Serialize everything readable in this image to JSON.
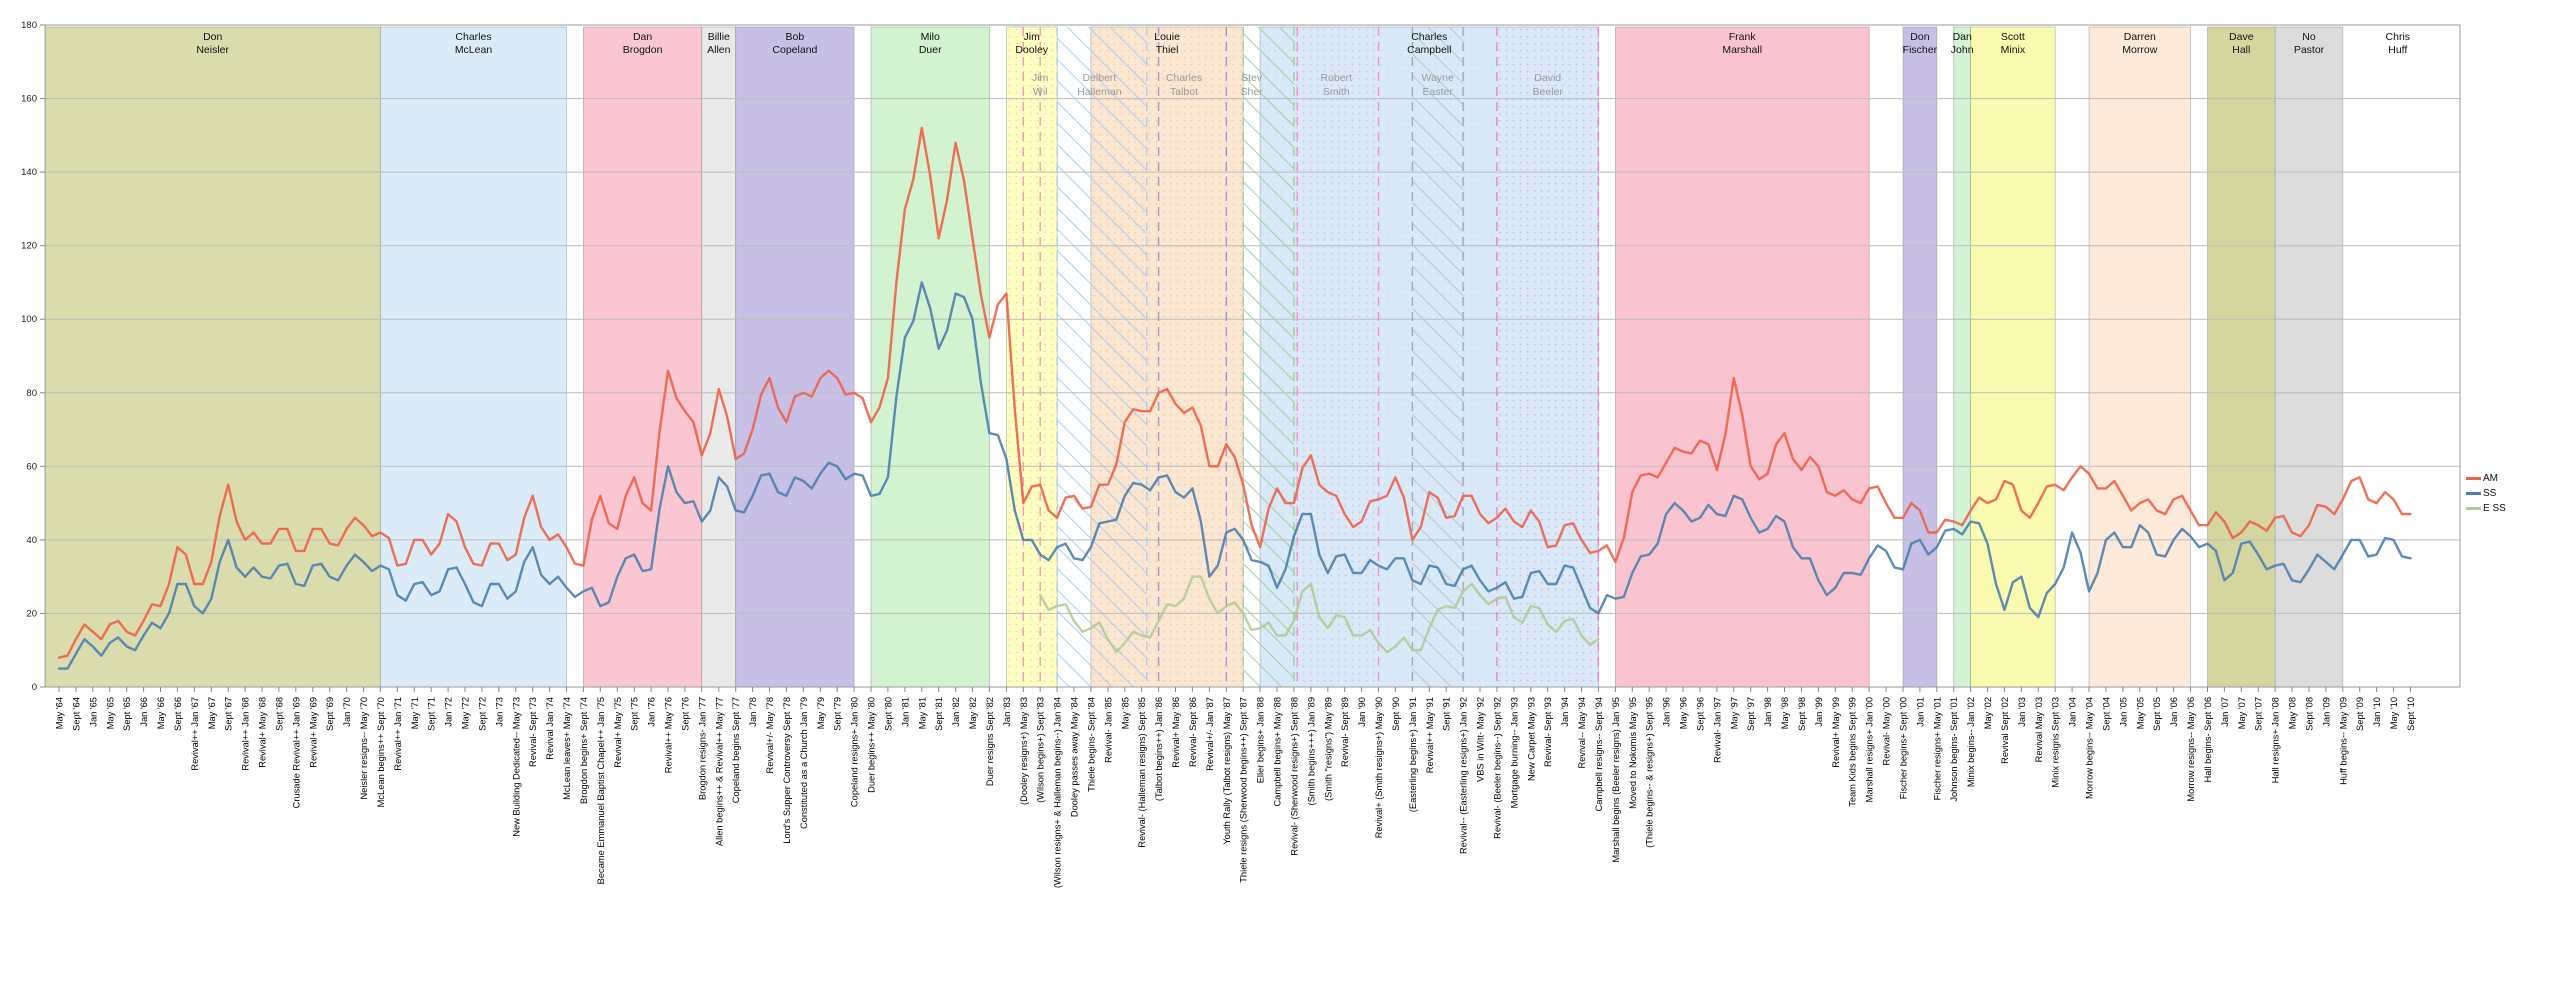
{
  "legend": {
    "items": [
      {
        "label": "AM",
        "color": "#ec6248"
      },
      {
        "label": "SS",
        "color": "#4b7fae"
      },
      {
        "label": "E SS",
        "color": "#b2cc96"
      }
    ]
  },
  "chart_data": {
    "type": "line",
    "title": "",
    "xlabel": "",
    "ylabel": "",
    "ylim": [
      0,
      180
    ],
    "y_ticks": [
      0,
      20,
      40,
      60,
      80,
      100,
      120,
      140,
      160,
      180
    ],
    "grid": true,
    "legend_position": "right",
    "x_tick_labels": [
      "May '64",
      "Sept '64",
      "Jan '65",
      "May '65",
      "Sept '65",
      "Jan '66",
      "May '66",
      "Sept '66",
      "Revival++ Jan '67",
      "May '67",
      "Sept '67",
      "Revival++ Jan '68",
      "Revival+ May '68",
      "Sept '68",
      "Crusade Revival++ Jan '69",
      "Revival+ May '69",
      "Sept '69",
      "Jan '70",
      "Neisler resigns-- May '70",
      "McLean begins++ Sept '70",
      "Revival++ Jan '71",
      "May '71",
      "Sept '71",
      "Jan '72",
      "May '72",
      "Sept '72",
      "Jan '73",
      "New Building Dedicated-- May '73",
      "Revival- Sept '73",
      "Revival Jan '74",
      "McLean leaves+ May '74",
      "Brogdon begins+ Sept '74",
      "Became Emmanuel Baptist Chapel++ Jan '75",
      "Revival+ May '75",
      "Sept '75",
      "Jan '76",
      "Revival++ May '76",
      "Sept '76",
      "Brogdon resigns- Jan '77",
      "Allen begins++ & Revival++ May '77",
      "Copeland begins Sept '77",
      "Jan '78",
      "Revival+/- May '78",
      "Lord's Supper Controversy Sept '78",
      "Constituted as a Church Jan '79",
      "May '79",
      "Sept '79",
      "Copeland resigns+ Jan '80",
      "Duer begins++ May '80",
      "Sept '80",
      "Jan '81",
      "May '81",
      "Sept '81",
      "Jan '82",
      "May '82",
      "Duer resigns Sept '82",
      "Jan '83",
      "(Dooley resigns+) May '83",
      "(Wilson begins+) Sept '83",
      "(Wilson resigns+ & Halleman begins--) Jan '84",
      "Dooley passes away May '84",
      "Thiele begins- Sept '84",
      "Revival- Jan '85",
      "May '85",
      "Revival- (Halleman resigns) Sept '85",
      "(Talbot begins++) Jan '86",
      "Revival+ May '86",
      "Revival- Sept '86",
      "Revival+/- Jan '87",
      "Youth Rally (Talbot resigns) May '87",
      "Thiele resigns (Sherwood begins++) Sept '87",
      "Eller begins+ Jan '88",
      "Campbell begins+ May '88",
      "Revival- (Sherwood resigns+) Sept '88",
      "(Smith begins+++) Jan '89",
      "(Smith \"resigns\") May '89",
      "Revival- Sept '89",
      "Jan '90",
      "Revival+ (Smith resigns+) May '90",
      "Sept '90",
      "(Easterling begins+) Jan '91",
      "Revival++ May '91",
      "Sept '91",
      "Revival-- (Easterling resigns+) Jan '92",
      "VBS in Witt- May '92",
      "Revival- (Beeler begins--) Sept '92",
      "Mortgage burning-- Jan '93",
      "New Carpet May '93",
      "Revival- Sept '93",
      "Jan '94",
      "Revival-- May '94",
      "Campbell resigns-- Sept '94",
      "Marshall begins (Beeler resigns) Jan '95",
      "Moved to Nokomis May '95",
      "(Thiele begins-- & resigns+) Sept '95",
      "Jan '96",
      "May '96",
      "Sept '96",
      "Revival- Jan '97",
      "May '97",
      "Sept '97",
      "Jan '98",
      "May '98",
      "Sept '98",
      "Jan '99",
      "Revival+ May '99",
      "Team Kids begins Sept '99",
      "Marshall resigns+ Jan '00",
      "Revival- May '00",
      "Fischer begins+ Sept '00",
      "Jan '01",
      "Fischer resigns+ May '01",
      "Johnson begins- Sept '01",
      "Minix begins-- Jan '02",
      "May '02",
      "Revival Sept '02",
      "Jan '03",
      "Revival May '03",
      "Minix resigns Sept '03",
      "Jan '04",
      "Morrow begins-- May '04",
      "Sept '04",
      "Jan '05",
      "May '05",
      "Sept '05",
      "Jan '06",
      "Morrow resigns-- May '06",
      "Hall begins- Sept '06",
      "Jan '07",
      "May '07",
      "Sept '07",
      "Hall resigns+ Jan '08",
      "May '08",
      "Sept '08",
      "Jan '09",
      "Huff begins-- May '09",
      "Sept '09",
      "Jan '10",
      "May '10",
      "Sept '10"
    ],
    "series": [
      {
        "name": "AM",
        "color": "#ec6248",
        "values": [
          8,
          13,
          15,
          17,
          15,
          18,
          22,
          38,
          28,
          34,
          55,
          40,
          39,
          43,
          37,
          43,
          39,
          43,
          44,
          42,
          33,
          40,
          36,
          47,
          38,
          33,
          39,
          36,
          52,
          40,
          38,
          33,
          52,
          43,
          57,
          48,
          86,
          75,
          63,
          81,
          62,
          70,
          84,
          72,
          80,
          84,
          84,
          80,
          72,
          84,
          130,
          152,
          122,
          148,
          122,
          95,
          107,
          50,
          55,
          46,
          52,
          49,
          55,
          72,
          75,
          80,
          77,
          76,
          60,
          66,
          55,
          38,
          54,
          50,
          63,
          53,
          47,
          45,
          51,
          57,
          40,
          53,
          46,
          52,
          47,
          46,
          45,
          48,
          38,
          44,
          40,
          37,
          34,
          53,
          58,
          61,
          64,
          67,
          59,
          84,
          60,
          58,
          69,
          59,
          60,
          52,
          51,
          54,
          50,
          46,
          48,
          42,
          45,
          48,
          50,
          56,
          48,
          50,
          55,
          57,
          58,
          54,
          52,
          50,
          48,
          51,
          48,
          44,
          45,
          42,
          44,
          46,
          42,
          44,
          49,
          51,
          57,
          50,
          51,
          47
        ]
      },
      {
        "name": "SS",
        "color": "#4b7fae",
        "values": [
          5,
          9,
          11,
          12,
          11,
          14,
          16,
          28,
          22,
          24,
          40,
          30,
          30,
          33,
          28,
          33,
          30,
          33,
          34,
          33,
          25,
          28,
          25,
          32,
          28,
          22,
          28,
          26,
          38,
          28,
          27,
          26,
          22,
          30,
          36,
          32,
          60,
          50,
          45,
          57,
          48,
          52,
          58,
          52,
          56,
          58,
          60,
          58,
          52,
          57,
          95,
          110,
          92,
          107,
          100,
          69,
          62,
          40,
          36,
          38,
          35,
          38,
          45,
          52,
          55,
          57,
          53,
          54,
          30,
          42,
          40,
          34,
          27,
          41,
          47,
          31,
          36,
          31,
          33,
          35,
          29,
          33,
          28,
          32,
          29,
          27,
          24,
          31,
          28,
          33,
          27,
          20,
          24,
          31,
          36,
          47,
          48,
          46,
          47,
          52,
          46,
          43,
          45,
          35,
          29,
          27,
          31,
          35,
          37,
          32,
          40,
          38,
          43,
          45,
          39,
          21,
          30,
          19,
          28,
          42,
          26,
          40,
          38,
          44,
          36,
          40,
          41,
          39,
          29,
          39,
          36,
          33,
          29,
          32,
          34,
          36,
          40,
          36,
          40,
          35
        ]
      },
      {
        "name": "E SS",
        "color": "#b2cc96",
        "values": [
          null,
          null,
          null,
          null,
          null,
          null,
          null,
          null,
          null,
          null,
          null,
          null,
          null,
          null,
          null,
          null,
          null,
          null,
          null,
          null,
          null,
          null,
          null,
          null,
          null,
          null,
          null,
          null,
          null,
          null,
          null,
          null,
          null,
          null,
          null,
          null,
          null,
          null,
          null,
          null,
          null,
          null,
          null,
          null,
          null,
          null,
          null,
          null,
          null,
          null,
          null,
          null,
          null,
          null,
          null,
          null,
          null,
          null,
          25,
          22,
          18,
          16,
          13,
          12,
          14,
          18,
          22,
          30,
          24,
          22,
          20,
          16,
          14,
          18,
          28,
          16,
          19,
          14,
          12,
          11,
          10,
          16,
          22,
          26,
          25,
          24,
          19,
          22,
          17,
          18,
          14,
          13,
          null,
          null,
          null,
          null,
          null,
          null,
          null,
          null,
          null,
          null,
          null,
          null,
          null,
          null,
          null,
          null,
          null,
          null,
          null,
          null,
          null,
          null,
          null,
          null,
          null,
          null,
          null,
          null,
          null,
          null,
          null,
          null,
          null,
          null,
          null,
          null,
          null,
          null,
          null,
          null,
          null,
          null,
          null,
          null,
          null,
          null,
          null,
          null
        ]
      }
    ],
    "pastor_bands": [
      {
        "name": "Don Neisler",
        "lines": [
          "Don",
          "Neisler"
        ],
        "color": "#dadcae",
        "start": -0.83,
        "end": 19
      },
      {
        "name": "Charles McLean",
        "lines": [
          "Charles",
          "McLean"
        ],
        "color": "#dcebf8",
        "start": 19,
        "end": 30
      },
      {
        "name": "Dan Brogdon",
        "lines": [
          "Dan",
          "Brogdon"
        ],
        "color": "#f9c6d2",
        "start": 31,
        "end": 38
      },
      {
        "name": "Billie Allen",
        "lines": [
          "Billie",
          "Allen"
        ],
        "color": "#e9e9e9",
        "start": 38,
        "end": 40
      },
      {
        "name": "Bob Copeland",
        "lines": [
          "Bob",
          "Copeland"
        ],
        "color": "#c7bfe5",
        "start": 40,
        "end": 47
      },
      {
        "name": "Milo Duer",
        "lines": [
          "Milo",
          "Duer"
        ],
        "color": "#d2f2d0",
        "start": 48,
        "end": 55
      },
      {
        "name": "Jim Dooley",
        "lines": [
          "Jim",
          "Dooley"
        ],
        "color": "#ffffc2",
        "start": 56,
        "end": 59
      },
      {
        "name": "Louie Thiel",
        "lines": [
          "Louie",
          "Thiel"
        ],
        "color": "#fbe6d0",
        "start": 61,
        "end": 70
      },
      {
        "name": "Charles Campbell",
        "lines": [
          "Charles",
          "Campbell"
        ],
        "color": "#d9e9f8",
        "start": 71,
        "end": 91
      },
      {
        "name": "Frank Marshall",
        "lines": [
          "Frank",
          "Marshall"
        ],
        "color": "#f9c3cf",
        "start": 92,
        "end": 107
      },
      {
        "name": "Don Fischer",
        "lines": [
          "Don",
          "Fischer"
        ],
        "color": "#c8bfe6",
        "start": 109,
        "end": 111
      },
      {
        "name": "Dan John",
        "lines": [
          "Dan",
          "John"
        ],
        "color": "#d4f2d4",
        "start": 112,
        "end": 113
      },
      {
        "name": "Scott Minix",
        "lines": [
          "Scott",
          "Minix"
        ],
        "color": "#fafab0",
        "start": 113,
        "end": 118
      },
      {
        "name": "Darren Morrow",
        "lines": [
          "Darren",
          "Morrow"
        ],
        "color": "#fce9d9",
        "start": 120,
        "end": 126
      },
      {
        "name": "Dave Hall",
        "lines": [
          "Dave",
          "Hall"
        ],
        "color": "#d5d5a0",
        "start": 127,
        "end": 131
      },
      {
        "name": "No Pastor",
        "lines": [
          "No",
          "Pastor"
        ],
        "color": "#dcdcdc",
        "start": 131,
        "end": 135
      },
      {
        "name": "Chris Huff",
        "lines": [
          "Chris",
          "Huff"
        ],
        "color": "none",
        "start": 135,
        "end": 141.5
      }
    ],
    "assistant_labels": [
      {
        "name": "Jim Wil",
        "lines": [
          "Jim",
          "Wil"
        ],
        "idx": 58
      },
      {
        "name": "Delbert Halleman",
        "lines": [
          "Delbert",
          "Halleman"
        ],
        "idx": 61.5
      },
      {
        "name": "Charles Talbot",
        "lines": [
          "Charles",
          "Talbot"
        ],
        "idx": 66.5
      },
      {
        "name": "Stev Sher",
        "lines": [
          "Stev",
          "Sher"
        ],
        "idx": 70.5
      },
      {
        "name": "Robert Smith",
        "lines": [
          "Robert",
          "Smith"
        ],
        "idx": 75.5
      },
      {
        "name": "Wayne Easter",
        "lines": [
          "Wayne",
          "Easter"
        ],
        "idx": 81.5
      },
      {
        "name": "David Beeler",
        "lines": [
          "David",
          "Beeler"
        ],
        "idx": 88
      }
    ],
    "texture_overlays": [
      {
        "type": "dots",
        "color": "#f0a0c8",
        "start": 56,
        "end": 59,
        "opacity": 0.5
      },
      {
        "type": "hatch",
        "color": "#a9cdec",
        "start": 59,
        "end": 64.3,
        "opacity": 0.9
      },
      {
        "type": "dots",
        "color": "#c9a8e0",
        "start": 61,
        "end": 70,
        "opacity": 0.45
      },
      {
        "type": "hatch",
        "color": "#96cf96",
        "start": 70,
        "end": 73,
        "opacity": 0.85
      },
      {
        "type": "dots",
        "color": "#b8d4ee",
        "start": 71,
        "end": 91,
        "opacity": 0.45
      },
      {
        "type": "dots",
        "color": "#f4a3cd",
        "start": 73,
        "end": 78,
        "opacity": 0.55
      },
      {
        "type": "hatch",
        "color": "#b9bfc6",
        "start": 80,
        "end": 83,
        "opacity": 0.8
      },
      {
        "type": "dots",
        "color": "#ee8fd0",
        "start": 85,
        "end": 91,
        "opacity": 0.55
      }
    ],
    "event_lines": [
      {
        "idx": 57,
        "color": "#f48fc0"
      },
      {
        "idx": 58,
        "color": "#f48fc0"
      },
      {
        "idx": 59,
        "color": "#a9cdec"
      },
      {
        "idx": 64.3,
        "color": "#a9cdec"
      },
      {
        "idx": 65,
        "color": "#9b8fd8"
      },
      {
        "idx": 69,
        "color": "#9b8fd8"
      },
      {
        "idx": 70,
        "color": "#96cf96"
      },
      {
        "idx": 73,
        "color": "#96cf96"
      },
      {
        "idx": 73.2,
        "color": "#f48fc0"
      },
      {
        "idx": 78,
        "color": "#f48fc0"
      },
      {
        "idx": 80,
        "color": "#9aa2ab"
      },
      {
        "idx": 83,
        "color": "#9aa2ab"
      },
      {
        "idx": 85,
        "color": "#ea7ac8"
      },
      {
        "idx": 91,
        "color": "#ea7ac8"
      }
    ]
  }
}
